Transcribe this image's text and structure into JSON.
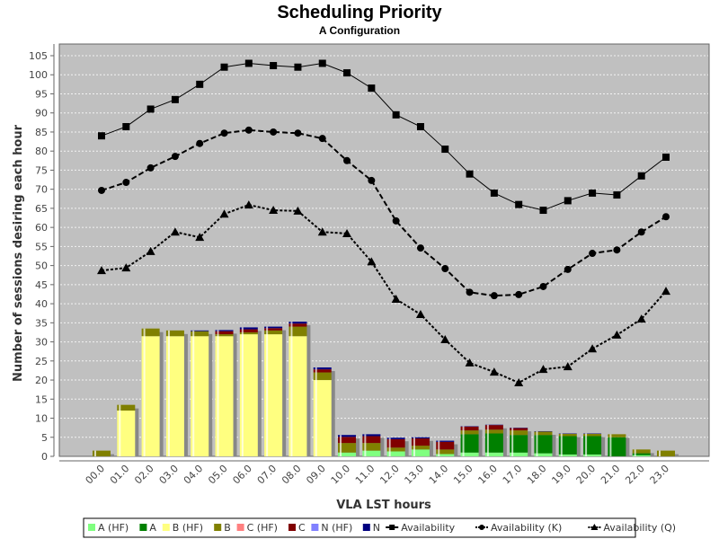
{
  "chart_data": {
    "type": "bar",
    "stacked": true,
    "title": "Scheduling Priority",
    "subtitle": "A Configuration",
    "xlabel": "VLA LST hours",
    "ylabel": "Number of sessions desiring each hour",
    "ylim": [
      0,
      107
    ],
    "yticks": [
      0,
      5,
      10,
      15,
      20,
      25,
      30,
      35,
      40,
      45,
      50,
      55,
      60,
      65,
      70,
      75,
      80,
      85,
      90,
      95,
      100,
      105
    ],
    "grid": true,
    "legend_position": "bottom",
    "categories": [
      "00.0",
      "01.0",
      "02.0",
      "03.0",
      "04.0",
      "05.0",
      "06.0",
      "07.0",
      "08.0",
      "09.0",
      "10.0",
      "11.0",
      "12.0",
      "13.0",
      "14.0",
      "15.0",
      "16.0",
      "17.0",
      "18.0",
      "19.0",
      "20.0",
      "21.0",
      "22.0",
      "23.0"
    ],
    "series": [
      {
        "name": "A (HF)",
        "color": "#80ff80",
        "values": [
          0,
          0,
          0,
          0,
          0,
          0,
          0,
          0,
          0,
          0,
          1.0,
          1.5,
          1.3,
          1.8,
          0.6,
          1.0,
          1.0,
          1.0,
          0.8,
          0.5,
          0.5,
          0,
          0.3,
          0
        ]
      },
      {
        "name": "A",
        "color": "#008000",
        "values": [
          0,
          0,
          0,
          0,
          0,
          0,
          0,
          0,
          0,
          0,
          0,
          0,
          0,
          0,
          0,
          4.8,
          5.0,
          4.6,
          4.8,
          4.8,
          4.8,
          5.0,
          0.5,
          0
        ]
      },
      {
        "name": "B (HF)",
        "color": "#ffff80",
        "values": [
          0,
          12,
          31.5,
          31.5,
          31.5,
          31.5,
          32,
          32,
          31.5,
          20,
          0,
          0,
          0,
          0,
          0,
          0,
          0,
          0,
          0,
          0,
          0,
          0,
          0,
          0
        ]
      },
      {
        "name": "B",
        "color": "#808000",
        "values": [
          1.5,
          1.5,
          2,
          1.5,
          1.3,
          0.5,
          0.5,
          1,
          2.5,
          2,
          2.5,
          2,
          1,
          1,
          1.2,
          1,
          1,
          1.2,
          0.9,
          0.6,
          0.6,
          0.8,
          1,
          1.5
        ]
      },
      {
        "name": "C (HF)",
        "color": "#ff8080",
        "values": [
          0,
          0,
          0,
          0,
          0,
          0,
          0,
          0,
          0,
          0,
          0,
          0,
          0,
          0,
          0,
          0,
          0,
          0,
          0,
          0,
          0,
          0,
          0,
          0
        ]
      },
      {
        "name": "C",
        "color": "#800000",
        "values": [
          0,
          0,
          0,
          0,
          0,
          0.8,
          0.8,
          0.6,
          0.8,
          0.8,
          1.6,
          1.8,
          2.2,
          1.9,
          2.0,
          1.0,
          1.2,
          0.6,
          0,
          0,
          0,
          0,
          0,
          0
        ]
      },
      {
        "name": "N (HF)",
        "color": "#8080ff",
        "values": [
          0,
          0,
          0,
          0,
          0,
          0,
          0,
          0,
          0,
          0,
          0,
          0,
          0,
          0,
          0,
          0,
          0,
          0,
          0,
          0,
          0,
          0,
          0,
          0
        ]
      },
      {
        "name": "N",
        "color": "#000080",
        "values": [
          0,
          0,
          0,
          0,
          0.2,
          0.3,
          0.5,
          0.4,
          0.5,
          0.5,
          0.5,
          0.5,
          0.4,
          0.3,
          0.3,
          0.1,
          0.1,
          0.1,
          0.1,
          0.1,
          0.1,
          0,
          0,
          0
        ]
      }
    ],
    "lines": [
      {
        "name": "Availability",
        "marker": "square",
        "dash": "solid",
        "values": [
          84,
          86.4,
          91,
          93.5,
          97.5,
          102,
          103,
          102.4,
          102,
          103,
          100.5,
          96.5,
          89.5,
          86.4,
          80.5,
          74,
          69,
          66,
          64.5,
          67,
          69,
          68.5,
          73.5,
          78.4
        ]
      },
      {
        "name": "Availability (K)",
        "marker": "circle",
        "dash": "dashed",
        "values": [
          69.7,
          71.8,
          75.6,
          78.6,
          82,
          84.7,
          85.5,
          85,
          84.7,
          83.3,
          77.5,
          72.3,
          61.7,
          54.6,
          49.2,
          43,
          42.1,
          42.4,
          44.5,
          49,
          53.2,
          54.1,
          58.8,
          62.8
        ]
      },
      {
        "name": "Availability (Q)",
        "marker": "triangle",
        "dash": "dotted",
        "values": [
          48.7,
          49.4,
          53.7,
          58.8,
          57.4,
          63.5,
          65.9,
          64.5,
          64.3,
          58.8,
          58.4,
          51,
          41.2,
          37.2,
          30.6,
          24.5,
          22.1,
          19.3,
          22.8,
          23.5,
          28.2,
          31.8,
          36,
          43.3
        ]
      }
    ]
  },
  "colors": {
    "plot_background": "#c0c0c0",
    "gridline": "#ffffff",
    "line": "#000000"
  }
}
